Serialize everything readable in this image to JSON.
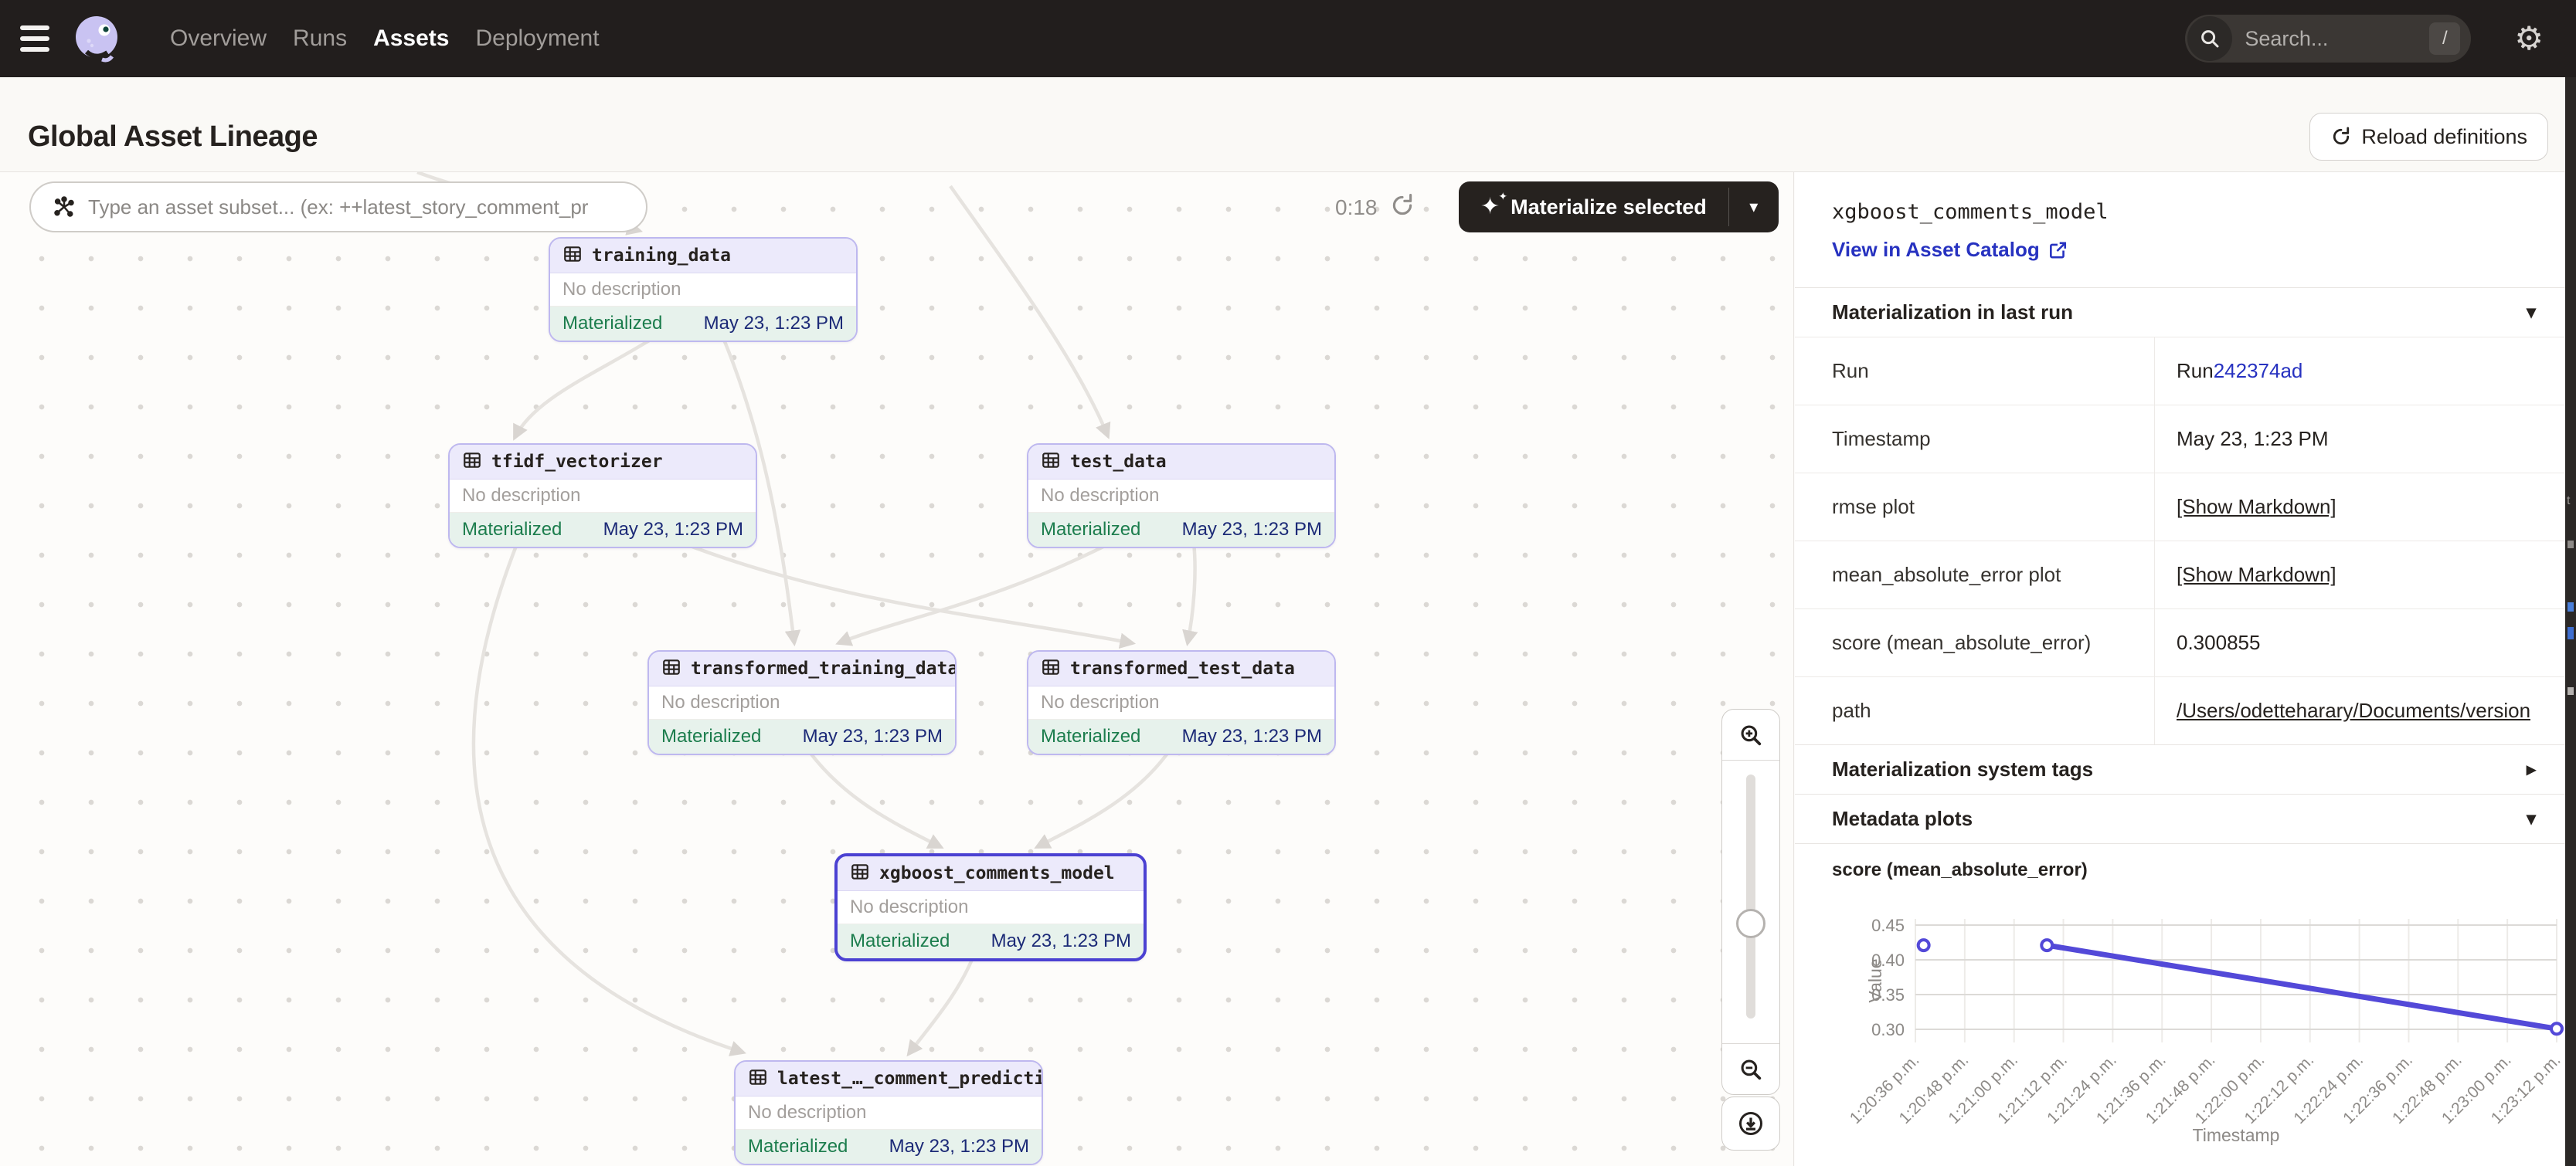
{
  "topnav": {
    "items": [
      {
        "label": "Overview"
      },
      {
        "label": "Runs"
      },
      {
        "label": "Assets"
      },
      {
        "label": "Deployment"
      }
    ],
    "active_item": "Assets",
    "search": {
      "placeholder": "Search...",
      "shortcut": "/"
    }
  },
  "header": {
    "title": "Global Asset Lineage",
    "reload_label": "Reload definitions"
  },
  "graph": {
    "filter_placeholder": "Type an asset subset... (ex: ++latest_story_comment_pr",
    "timer": "0:18",
    "materialize_label": "Materialize selected",
    "nodes": [
      {
        "name": "training_data",
        "description": "No description",
        "status": "Materialized",
        "timestamp": "May 23, 1:23 PM"
      },
      {
        "name": "tfidf_vectorizer",
        "description": "No description",
        "status": "Materialized",
        "timestamp": "May 23, 1:23 PM"
      },
      {
        "name": "test_data",
        "description": "No description",
        "status": "Materialized",
        "timestamp": "May 23, 1:23 PM"
      },
      {
        "name": "transformed_training_data",
        "description": "No description",
        "status": "Materialized",
        "timestamp": "May 23, 1:23 PM"
      },
      {
        "name": "transformed_test_data",
        "description": "No description",
        "status": "Materialized",
        "timestamp": "May 23, 1:23 PM"
      },
      {
        "name": "xgboost_comments_model",
        "description": "No description",
        "status": "Materialized",
        "timestamp": "May 23, 1:23 PM",
        "selected": true
      },
      {
        "name": "latest_…_comment_predictions",
        "description": "No description",
        "status": "Materialized",
        "timestamp": "May 23, 1:23 PM"
      }
    ]
  },
  "panel": {
    "title": "xgboost_comments_model",
    "catalog_link": "View in Asset Catalog",
    "sections": {
      "last_run": "Materialization in last run",
      "tags": "Materialization system tags",
      "plots": "Metadata plots"
    },
    "rows": [
      {
        "label": "Run",
        "value_prefix": "Run ",
        "link": "242374ad"
      },
      {
        "label": "Timestamp",
        "value": "May 23, 1:23 PM"
      },
      {
        "label": "rmse plot",
        "value": "[Show Markdown]"
      },
      {
        "label": "mean_absolute_error plot",
        "value": "[Show Markdown]"
      },
      {
        "label": "score (mean_absolute_error)",
        "value": "0.300855"
      },
      {
        "label": "path",
        "value": "/Users/odetteharary/Documents/version"
      }
    ]
  },
  "chart_data": {
    "type": "line",
    "title": "score (mean_absolute_error)",
    "xlabel": "Timestamp",
    "ylabel": "Value",
    "y_ticks": [
      "0.45",
      "0.40",
      "0.35",
      "0.30"
    ],
    "ylim": [
      0.3,
      0.45
    ],
    "x_ticks": [
      "1:20:36 p.m.",
      "1:20:48 p.m.",
      "1:21:00 p.m.",
      "1:21:12 p.m.",
      "1:21:24 p.m.",
      "1:21:36 p.m.",
      "1:21:48 p.m.",
      "1:22:00 p.m.",
      "1:22:12 p.m.",
      "1:22:24 p.m.",
      "1:22:36 p.m.",
      "1:22:48 p.m.",
      "1:23:00 p.m.",
      "1:23:12 p.m."
    ],
    "x_range_seconds": 156,
    "grid": true,
    "legend": null,
    "line_color": "#5349d8",
    "line_start_index": 1,
    "points": [
      {
        "time": "1:20:38 p.m.",
        "seconds": 2,
        "value": 0.421
      },
      {
        "time": "1:21:08 p.m.",
        "seconds": 32,
        "value": 0.421
      },
      {
        "time": "1:23:12 p.m.",
        "seconds": 156,
        "value": 0.300855
      }
    ]
  }
}
